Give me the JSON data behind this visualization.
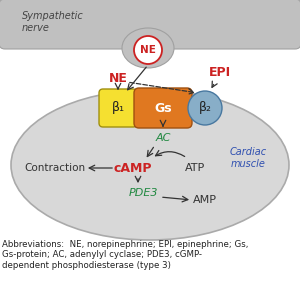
{
  "fig_width": 3.0,
  "fig_height": 2.89,
  "bg_color": "#ffffff",
  "nerve_color": "#c0c0c0",
  "nerve_edge_color": "#a0a0a0",
  "cell_color": "#d8d8d8",
  "cell_edge_color": "#aaaaaa",
  "ne_circle_color": "#ffffff",
  "ne_circle_edge": "#cc2222",
  "ne_circle_text": "NE",
  "ne_circle_text_color": "#cc2222",
  "beta1_color": "#f5e030",
  "beta1_edge": "#a09010",
  "beta1_text": "β₁",
  "gs_color": "#e07820",
  "gs_edge": "#a05010",
  "gs_text": "Gs",
  "beta2_color": "#88aec8",
  "beta2_edge": "#4878a0",
  "beta2_text": "β₂",
  "ne_label_color": "#cc2222",
  "epi_label_color": "#cc2222",
  "ac_color": "#208840",
  "camp_color": "#cc2222",
  "pde3_color": "#208840",
  "cardiac_text": "Cardiac\nmuscle",
  "cardiac_text_color": "#3050b0",
  "arrow_color": "#333333",
  "contraction_text": "Contraction",
  "atp_text": "ATP",
  "amp_text": "AMP",
  "abbrev_text": "Abbreviations:  NE, norepinephrine; EPI, epinephrine; Gs,\nGs-protein; AC, adenylyl cyclase; PDE3, cGMP-\ndependent phosphodiesterase (type 3)",
  "abbrev_fontsize": 6.2
}
